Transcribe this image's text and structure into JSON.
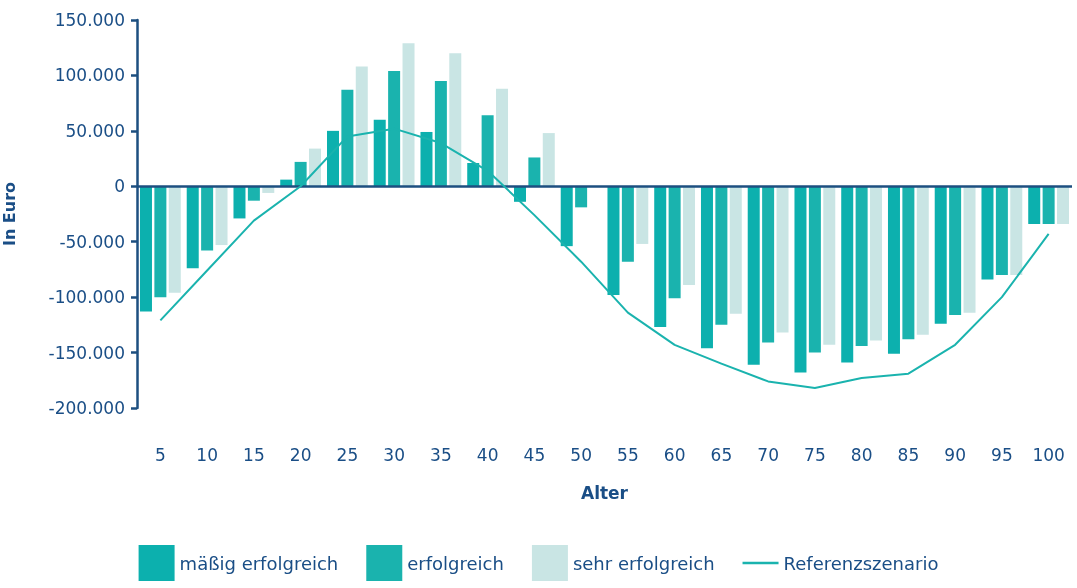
{
  "chart_data": {
    "type": "bar",
    "xlabel": "Alter",
    "ylabel": "In Euro",
    "categories": [
      "5",
      "10",
      "15",
      "20",
      "25",
      "30",
      "35",
      "40",
      "45",
      "50",
      "55",
      "60",
      "65",
      "70",
      "75",
      "80",
      "85",
      "90",
      "95",
      "100"
    ],
    "series": [
      {
        "name": "mäßig erfolgreich",
        "color": "#0cb0ae",
        "values": [
          -113000,
          -74000,
          -29000,
          6000,
          50000,
          60000,
          49000,
          21000,
          -14000,
          -54000,
          -98000,
          -127000,
          -146000,
          -161000,
          -168000,
          -159000,
          -151000,
          -124000,
          -84000,
          -34000
        ]
      },
      {
        "name": "erfolgreich",
        "color": "#1ab3ae",
        "values": [
          -100000,
          -58000,
          -13000,
          22000,
          87000,
          104000,
          95000,
          64000,
          26000,
          -19000,
          -68000,
          -101000,
          -125000,
          -141000,
          -150000,
          -144000,
          -138000,
          -116000,
          -80000,
          -34000
        ]
      },
      {
        "name": "sehr erfolgreich",
        "color": "#c9e5e4",
        "values": [
          -96000,
          -53000,
          -6000,
          34000,
          108000,
          129000,
          120000,
          88000,
          48000,
          0,
          -52000,
          -89000,
          -115000,
          -132000,
          -143000,
          -139000,
          -134000,
          -114000,
          -80000,
          -34000
        ]
      },
      {
        "name": "Referenzszenario",
        "type": "line",
        "color": "#1ab3ae",
        "values": [
          -121000,
          -76000,
          -31000,
          0,
          45000,
          52000,
          39000,
          14000,
          -26000,
          -68000,
          -114000,
          -143000,
          -160000,
          -176000,
          -182000,
          -173000,
          -169000,
          -143000,
          -100000,
          -43000
        ]
      }
    ],
    "ylim": [
      -200000,
      150000
    ],
    "yticks": [
      {
        "value": -200000,
        "label": "-200.000"
      },
      {
        "value": -150000,
        "label": "-150.000"
      },
      {
        "value": -100000,
        "label": "-100.000"
      },
      {
        "value": -50000,
        "label": "-50.000"
      },
      {
        "value": 0,
        "label": "0"
      },
      {
        "value": 50000,
        "label": "50.000"
      },
      {
        "value": 100000,
        "label": "100.000"
      },
      {
        "value": 150000,
        "label": "150.000"
      }
    ],
    "ref_lines": [
      {
        "axis": "y",
        "value": 0,
        "color": "#1d4f80",
        "line_style": "solid"
      }
    ],
    "grid": false,
    "legend": "bottom",
    "marker": "none",
    "line_style": "solid"
  }
}
